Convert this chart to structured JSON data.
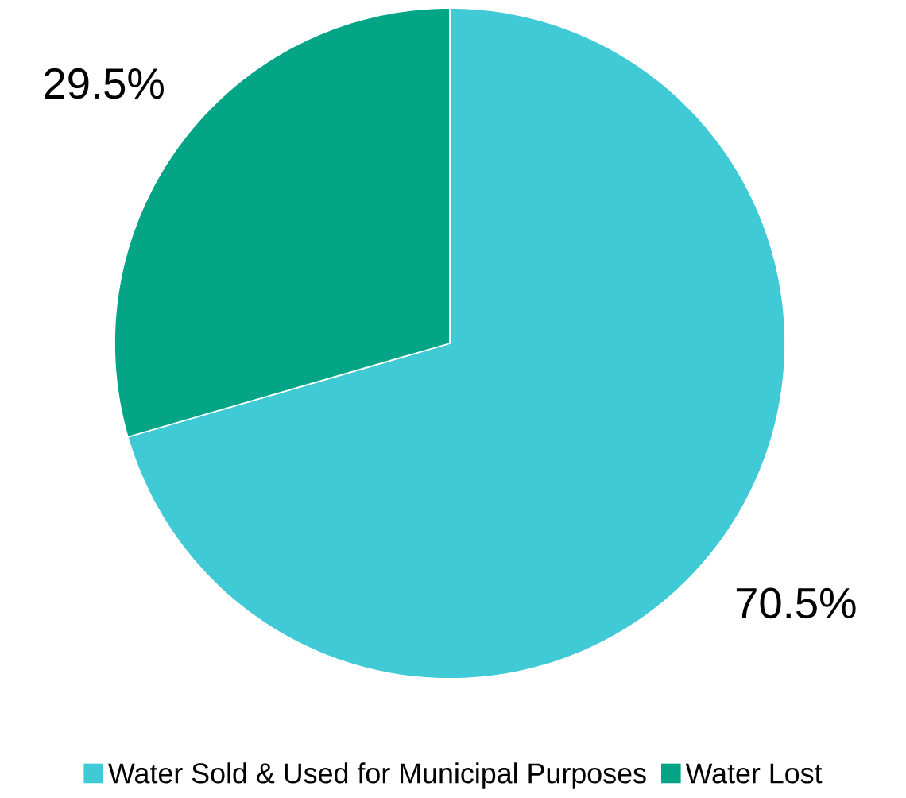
{
  "chart_data": {
    "type": "pie",
    "categories": [
      "Water Sold & Used for Municipal Purposes",
      "Water Lost"
    ],
    "values": [
      70.5,
      29.5
    ],
    "colors": [
      "#40cad5",
      "#04a586"
    ],
    "value_labels": [
      "70.5%",
      "29.5%"
    ],
    "legend": "bottom"
  }
}
